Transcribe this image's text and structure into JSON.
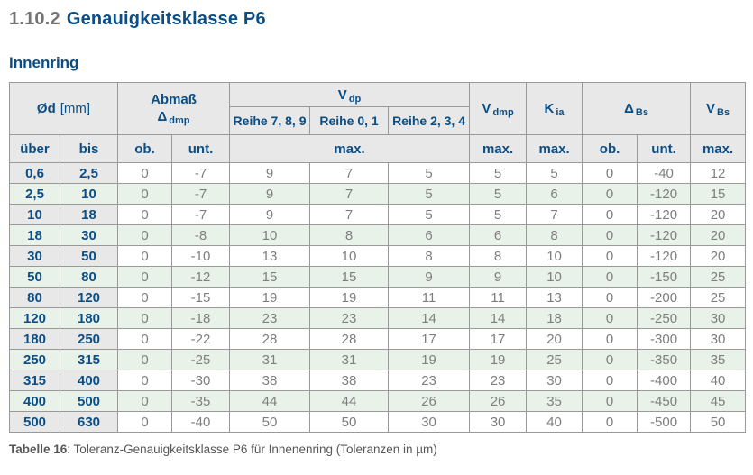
{
  "page": {
    "section_number": "1.10.2",
    "section_title": "Genauigkeitsklasse P6",
    "subtitle": "Innenring",
    "caption_label": "Tabelle 16",
    "caption_rest": ": Toleranz-Genauigkeitsklasse P6 für Innenenring (Toleranzen in µm)"
  },
  "colors": {
    "accent_blue": "#0b4e85",
    "section_number_gray": "#747474",
    "header_bg": "#e8e8e8",
    "row_stripe_green": "#e9f2e9",
    "row_white": "#ffffff",
    "data_text_gray": "#7e7e7e",
    "border_gray": "#999999",
    "caption_gray": "#575757"
  },
  "table": {
    "header": {
      "od_label": "Ød",
      "od_unit": "[mm]",
      "abmass_line1": "Abmaß",
      "abmass_sym": "Δ",
      "abmass_sub": "dmp",
      "vdp_sym": "V",
      "vdp_sub": "dp",
      "reihe_789": "Reihe 7, 8, 9",
      "reihe_01": "Reihe 0, 1",
      "reihe_234": "Reihe 2, 3, 4",
      "vdmp_sym": "V",
      "vdmp_sub": "dmp",
      "kia_sym": "K",
      "kia_sub": "ia",
      "dbs_sym": "Δ",
      "dbs_sub": "Bs",
      "vbs_sym": "V",
      "vbs_sub": "Bs",
      "ueber": "über",
      "bis": "bis",
      "ob": "ob.",
      "unt": "unt.",
      "max": "max."
    },
    "rows": [
      [
        "0,6",
        "2,5",
        "0",
        "-7",
        "9",
        "7",
        "5",
        "5",
        "5",
        "0",
        "-40",
        "12"
      ],
      [
        "2,5",
        "10",
        "0",
        "-7",
        "9",
        "7",
        "5",
        "5",
        "6",
        "0",
        "-120",
        "15"
      ],
      [
        "10",
        "18",
        "0",
        "-7",
        "9",
        "7",
        "5",
        "5",
        "7",
        "0",
        "-120",
        "20"
      ],
      [
        "18",
        "30",
        "0",
        "-8",
        "10",
        "8",
        "6",
        "6",
        "8",
        "0",
        "-120",
        "20"
      ],
      [
        "30",
        "50",
        "0",
        "-10",
        "13",
        "10",
        "8",
        "8",
        "10",
        "0",
        "-120",
        "20"
      ],
      [
        "50",
        "80",
        "0",
        "-12",
        "15",
        "15",
        "9",
        "9",
        "10",
        "0",
        "-150",
        "25"
      ],
      [
        "80",
        "120",
        "0",
        "-15",
        "19",
        "19",
        "11",
        "11",
        "13",
        "0",
        "-200",
        "25"
      ],
      [
        "120",
        "180",
        "0",
        "-18",
        "23",
        "23",
        "14",
        "14",
        "18",
        "0",
        "-250",
        "30"
      ],
      [
        "180",
        "250",
        "0",
        "-22",
        "28",
        "28",
        "17",
        "17",
        "20",
        "0",
        "-300",
        "30"
      ],
      [
        "250",
        "315",
        "0",
        "-25",
        "31",
        "31",
        "19",
        "19",
        "25",
        "0",
        "-350",
        "35"
      ],
      [
        "315",
        "400",
        "0",
        "-30",
        "38",
        "38",
        "23",
        "23",
        "30",
        "0",
        "-400",
        "40"
      ],
      [
        "400",
        "500",
        "0",
        "-35",
        "44",
        "44",
        "26",
        "26",
        "35",
        "0",
        "-450",
        "45"
      ],
      [
        "500",
        "630",
        "0",
        "-40",
        "50",
        "50",
        "30",
        "30",
        "40",
        "0",
        "-500",
        "50"
      ]
    ]
  }
}
